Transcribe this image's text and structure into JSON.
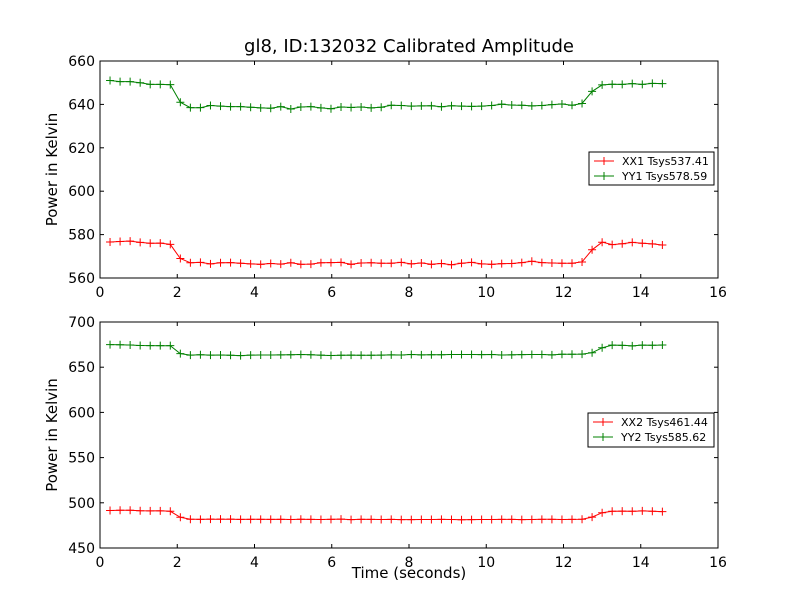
{
  "chart_data": [
    {
      "type": "line",
      "title": "gl8, ID:132032 Calibrated Amplitude",
      "xlabel": "",
      "ylabel": "Power in Kelvin",
      "xlim": [
        0,
        16
      ],
      "ylim": [
        560,
        660
      ],
      "xticks": [
        "0",
        "2",
        "4",
        "6",
        "8",
        "10",
        "12",
        "14",
        "16"
      ],
      "yticks": [
        "560",
        "580",
        "600",
        "620",
        "640",
        "660"
      ],
      "legend_position": "center-right",
      "x": [
        0.26,
        0.52,
        0.78,
        1.04,
        1.3,
        1.56,
        1.82,
        2.08,
        2.34,
        2.6,
        2.86,
        3.12,
        3.38,
        3.64,
        3.9,
        4.16,
        4.42,
        4.68,
        4.94,
        5.2,
        5.46,
        5.72,
        5.98,
        6.24,
        6.5,
        6.76,
        7.02,
        7.28,
        7.54,
        7.8,
        8.06,
        8.32,
        8.58,
        8.84,
        9.1,
        9.36,
        9.62,
        9.88,
        10.14,
        10.4,
        10.66,
        10.92,
        11.18,
        11.44,
        11.7,
        11.96,
        12.22,
        12.48,
        12.74,
        13.0,
        13.26,
        13.52,
        13.78,
        14.04,
        14.3,
        14.56
      ],
      "series": [
        {
          "name": "XX1 Tsys537.41",
          "color": "#ff0000",
          "values": [
            576.6,
            576.8,
            577.0,
            576.4,
            576.0,
            576.1,
            575.5,
            569.0,
            567.0,
            567.2,
            566.5,
            567.0,
            567.1,
            566.8,
            566.5,
            566.3,
            566.7,
            566.4,
            567.0,
            566.3,
            566.4,
            567.0,
            567.1,
            567.2,
            566.3,
            566.9,
            567.0,
            566.8,
            566.8,
            567.2,
            566.5,
            566.9,
            566.3,
            566.7,
            566.1,
            566.8,
            567.2,
            566.5,
            566.3,
            566.6,
            566.7,
            567.1,
            567.7,
            567.1,
            566.9,
            566.8,
            566.8,
            567.4,
            573.0,
            576.5,
            575.4,
            575.8,
            576.4,
            576.0,
            575.7,
            575.2
          ]
        },
        {
          "name": "YY1 Tsys578.59",
          "color": "#008000",
          "values": [
            651.0,
            650.5,
            650.5,
            650.0,
            649.2,
            649.2,
            649.1,
            641.0,
            638.5,
            638.5,
            639.5,
            639.2,
            639.0,
            639.0,
            638.7,
            638.4,
            638.2,
            639.0,
            637.9,
            638.8,
            639.0,
            638.4,
            638.0,
            638.8,
            638.6,
            638.8,
            638.4,
            638.7,
            639.6,
            639.5,
            639.2,
            639.3,
            639.4,
            638.9,
            639.4,
            639.2,
            639.1,
            639.2,
            639.5,
            640.1,
            639.7,
            639.6,
            639.3,
            639.5,
            639.9,
            640.2,
            639.6,
            640.4,
            646.0,
            649.0,
            649.3,
            649.2,
            649.6,
            649.2,
            649.7,
            649.6
          ]
        }
      ]
    },
    {
      "type": "line",
      "title": "",
      "xlabel": "Time (seconds)",
      "ylabel": "Power in Kelvin",
      "xlim": [
        0,
        16
      ],
      "ylim": [
        450,
        700
      ],
      "xticks": [
        "0",
        "2",
        "4",
        "6",
        "8",
        "10",
        "12",
        "14",
        "16"
      ],
      "yticks": [
        "450",
        "500",
        "550",
        "600",
        "650",
        "700"
      ],
      "legend_position": "center-right",
      "x": [
        0.26,
        0.52,
        0.78,
        1.04,
        1.3,
        1.56,
        1.82,
        2.08,
        2.34,
        2.6,
        2.86,
        3.12,
        3.38,
        3.64,
        3.9,
        4.16,
        4.42,
        4.68,
        4.94,
        5.2,
        5.46,
        5.72,
        5.98,
        6.24,
        6.5,
        6.76,
        7.02,
        7.28,
        7.54,
        7.8,
        8.06,
        8.32,
        8.58,
        8.84,
        9.1,
        9.36,
        9.62,
        9.88,
        10.14,
        10.4,
        10.66,
        10.92,
        11.18,
        11.44,
        11.7,
        11.96,
        12.22,
        12.48,
        12.74,
        13.0,
        13.26,
        13.52,
        13.78,
        14.04,
        14.3,
        14.56
      ],
      "series": [
        {
          "name": "XX2 Tsys461.44",
          "color": "#ff0000",
          "values": [
            491.5,
            491.8,
            491.7,
            491.2,
            491.0,
            491.1,
            490.6,
            484.0,
            481.8,
            481.7,
            481.9,
            481.9,
            481.9,
            481.6,
            481.7,
            481.7,
            481.6,
            481.7,
            481.5,
            481.8,
            481.6,
            481.5,
            481.7,
            482.0,
            481.4,
            481.7,
            481.6,
            481.5,
            481.6,
            481.4,
            481.4,
            481.5,
            481.5,
            481.6,
            481.5,
            481.3,
            481.4,
            481.5,
            481.5,
            481.6,
            481.6,
            481.4,
            481.5,
            481.7,
            481.7,
            481.5,
            481.6,
            481.8,
            484.2,
            489.0,
            490.6,
            490.8,
            490.6,
            491.0,
            490.7,
            490.3
          ]
        },
        {
          "name": "YY2 Tsys585.62",
          "color": "#008000",
          "values": [
            675.0,
            674.8,
            674.6,
            674.0,
            673.9,
            673.8,
            673.8,
            665.0,
            663.4,
            663.8,
            663.4,
            663.5,
            663.2,
            662.8,
            663.4,
            663.5,
            663.5,
            663.6,
            663.8,
            664.1,
            663.8,
            663.3,
            662.9,
            663.2,
            663.4,
            663.2,
            663.2,
            663.4,
            663.6,
            663.5,
            664.0,
            663.6,
            663.8,
            663.8,
            664.0,
            664.0,
            664.0,
            663.9,
            664.0,
            663.5,
            663.7,
            663.9,
            664.0,
            664.0,
            663.6,
            664.3,
            664.3,
            664.5,
            666.0,
            671.5,
            674.4,
            674.2,
            673.6,
            674.4,
            674.3,
            674.5
          ]
        }
      ]
    }
  ]
}
